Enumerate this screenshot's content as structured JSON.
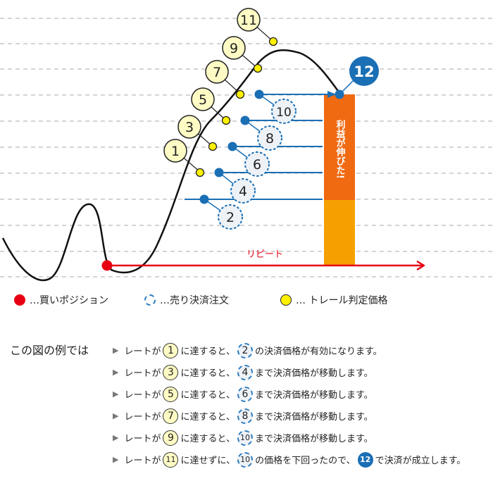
{
  "colors": {
    "price_line": "#111111",
    "grid": "#aaaaaa",
    "repeat_arrow": "#e60012",
    "order_line": "#1a6fb5",
    "trail_yellow": "#fff100",
    "badge_yellow": "#fffbc4",
    "profit_orange": "#f06a12",
    "profit_amber": "#f5a000"
  },
  "diagram": {
    "repeat_label": "リピート",
    "profit_label": "利益が伸びた!",
    "trail_labels": [
      "1",
      "3",
      "5",
      "7",
      "9",
      "11"
    ],
    "order_labels": [
      "2",
      "4",
      "6",
      "8",
      "10"
    ],
    "settle_label": "12"
  },
  "legend": {
    "buy_position": "…買いポジション",
    "sell_order": "…売り決済注文",
    "trail_price": "… トレール判定価格"
  },
  "example": {
    "label": "この図の例では",
    "steps": [
      {
        "p1": "レートが",
        "a": "1",
        "p2": "に達すると、",
        "b": "2",
        "p3": "の決済価格が有効になります。"
      },
      {
        "p1": "レートが",
        "a": "3",
        "p2": "に達すると、",
        "b": "4",
        "p3": "まで決済価格が移動します。"
      },
      {
        "p1": "レートが",
        "a": "5",
        "p2": "に達すると、",
        "b": "6",
        "p3": "まで決済価格が移動します。"
      },
      {
        "p1": "レートが",
        "a": "7",
        "p2": "に達すると、",
        "b": "8",
        "p3": "まで決済価格が移動します。"
      },
      {
        "p1": "レートが",
        "a": "9",
        "p2": "に達すると、",
        "b": "10",
        "p3": "まで決済価格が移動します。"
      }
    ],
    "last_step": {
      "p1": "レートが",
      "a": "11",
      "p2": "に達せずに、",
      "b": "10",
      "p3": "の価格を下回ったので、",
      "c": "12",
      "p4": "で決済が成立します。"
    }
  }
}
